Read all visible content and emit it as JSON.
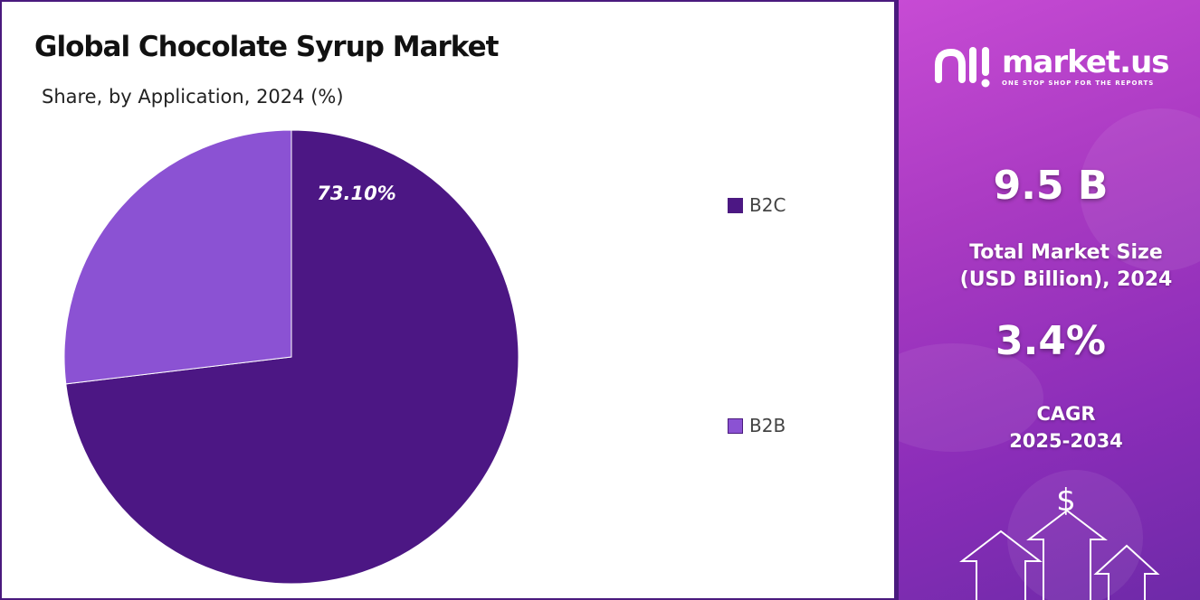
{
  "header": {
    "title": "Global Chocolate Syrup Market",
    "subtitle": "Share, by Application, 2024 (%)"
  },
  "chart_data": {
    "type": "pie",
    "slices": [
      {
        "label": "B2C",
        "value": 73.1,
        "value_label": "73.10%",
        "color": "#4c1784"
      },
      {
        "label": "B2B",
        "value": 26.9,
        "value_label": "",
        "color": "#8b52d3"
      }
    ],
    "legend_position": "right"
  },
  "legend": {
    "items": [
      {
        "label": "B2C",
        "color": "#4c1784"
      },
      {
        "label": "B2B",
        "color": "#8b52d3"
      }
    ]
  },
  "brand": {
    "name": "market.us",
    "tagline": "ONE STOP SHOP FOR THE REPORTS"
  },
  "stats": {
    "market_size_value": "9.5 B",
    "market_size_label_line1": "Total Market Size",
    "market_size_label_line2": "(USD Billion), 2024",
    "cagr_value": "3.4%",
    "cagr_label_line1": "CAGR",
    "cagr_label_line2": "2025-2034"
  },
  "icons": {
    "currency": "dollar-icon",
    "growth": "up-arrow-icons"
  }
}
